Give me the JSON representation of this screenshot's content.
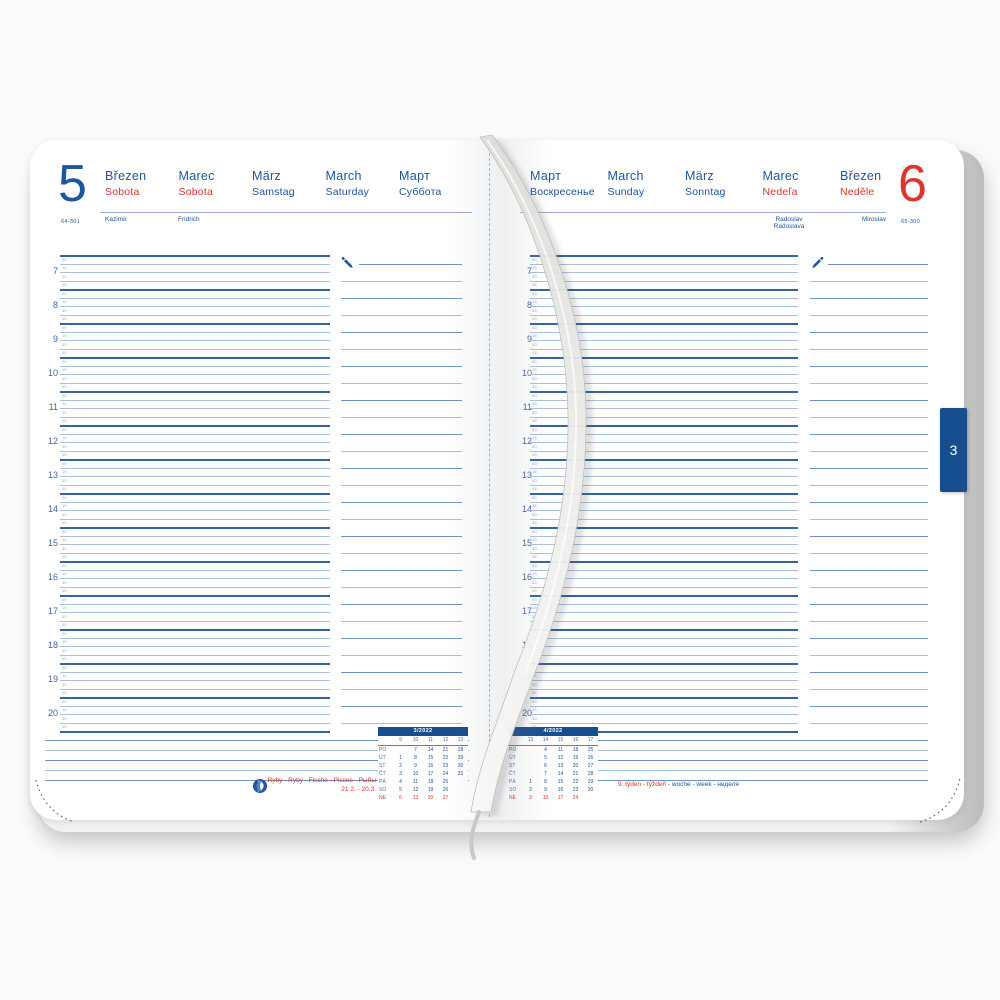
{
  "side_tab": {
    "label": "3"
  },
  "time_grid": {
    "hours": [
      "7",
      "8",
      "9",
      "10",
      "11",
      "12",
      "13",
      "14",
      "15",
      "16",
      "17",
      "18",
      "19",
      "20"
    ],
    "minutes": [
      "00",
      "15",
      "30",
      "45"
    ]
  },
  "left_page": {
    "day_number": "5",
    "day_counter": "64-301",
    "columns": [
      {
        "month": "Březen",
        "day": "Sobota",
        "red": true
      },
      {
        "month": "Marec",
        "day": "Sobota",
        "red": true
      },
      {
        "month": "März",
        "day": "Samstag",
        "red": false
      },
      {
        "month": "March",
        "day": "Saturday",
        "red": false
      },
      {
        "month": "Март",
        "day": "Суббота",
        "red": false
      }
    ],
    "name_days": [
      [
        "Kazimír"
      ],
      [
        "Fridrich"
      ]
    ],
    "mini_calendar": {
      "title": "3/2022",
      "week_numbers": [
        "9",
        "10",
        "11",
        "12",
        "13"
      ],
      "rows": [
        {
          "label": "PO",
          "days": [
            "",
            "7",
            "14",
            "21",
            "28"
          ],
          "red": false
        },
        {
          "label": "ÚT",
          "days": [
            "1",
            "8",
            "15",
            "22",
            "29"
          ],
          "red": false
        },
        {
          "label": "ST",
          "days": [
            "2",
            "9",
            "16",
            "23",
            "30"
          ],
          "red": false
        },
        {
          "label": "ČT",
          "days": [
            "3",
            "10",
            "17",
            "24",
            "31"
          ],
          "red": false
        },
        {
          "label": "PÁ",
          "days": [
            "4",
            "11",
            "18",
            "25",
            ""
          ],
          "red": false
        },
        {
          "label": "SO",
          "days": [
            "5",
            "12",
            "19",
            "26",
            ""
          ],
          "red": false
        },
        {
          "label": "NE",
          "days": [
            "6",
            "13",
            "20",
            "27",
            ""
          ],
          "red": true
        }
      ]
    },
    "footer": {
      "zodiac_line": "Ryby - Ryby - Fische - Pisces - Рыбы",
      "zodiac_dates": "21.2. - 20.3."
    }
  },
  "right_page": {
    "day_number": "6",
    "day_counter": "65-300",
    "columns": [
      {
        "month": "Март",
        "day": "Воскресенье",
        "red": false
      },
      {
        "month": "March",
        "day": "Sunday",
        "red": false
      },
      {
        "month": "März",
        "day": "Sonntag",
        "red": false
      },
      {
        "month": "Marec",
        "day": "Nedeľa",
        "red": true
      },
      {
        "month": "Březen",
        "day": "Neděle",
        "red": true
      }
    ],
    "name_days": [
      [
        "Radoslav",
        "Radoslava"
      ],
      [
        "Miroslav"
      ]
    ],
    "mini_calendar": {
      "title": "4/2022",
      "week_numbers": [
        "13",
        "14",
        "15",
        "16",
        "17"
      ],
      "rows": [
        {
          "label": "PO",
          "days": [
            "",
            "4",
            "11",
            "18",
            "25"
          ],
          "red": false
        },
        {
          "label": "ÚT",
          "days": [
            "",
            "5",
            "12",
            "19",
            "26"
          ],
          "red": false
        },
        {
          "label": "ST",
          "days": [
            "",
            "6",
            "13",
            "20",
            "27"
          ],
          "red": false
        },
        {
          "label": "ČT",
          "days": [
            "",
            "7",
            "14",
            "21",
            "28"
          ],
          "red": false
        },
        {
          "label": "PÁ",
          "days": [
            "1",
            "8",
            "15",
            "22",
            "29"
          ],
          "red": false
        },
        {
          "label": "SO",
          "days": [
            "2",
            "9",
            "16",
            "23",
            "30"
          ],
          "red": false
        },
        {
          "label": "NE",
          "days": [
            "3",
            "10",
            "17",
            "24",
            ""
          ],
          "red": true
        }
      ]
    },
    "footer": {
      "week_red": "9. týden - týždeň",
      "week_blue": "- woche - week - неделя"
    }
  },
  "colors": {
    "accent_blue": "#1e55a0",
    "accent_red": "#dd352e",
    "grid_dark": "#34639f",
    "grid_light": "#a9c0de",
    "tab_blue": "#174e8f"
  }
}
